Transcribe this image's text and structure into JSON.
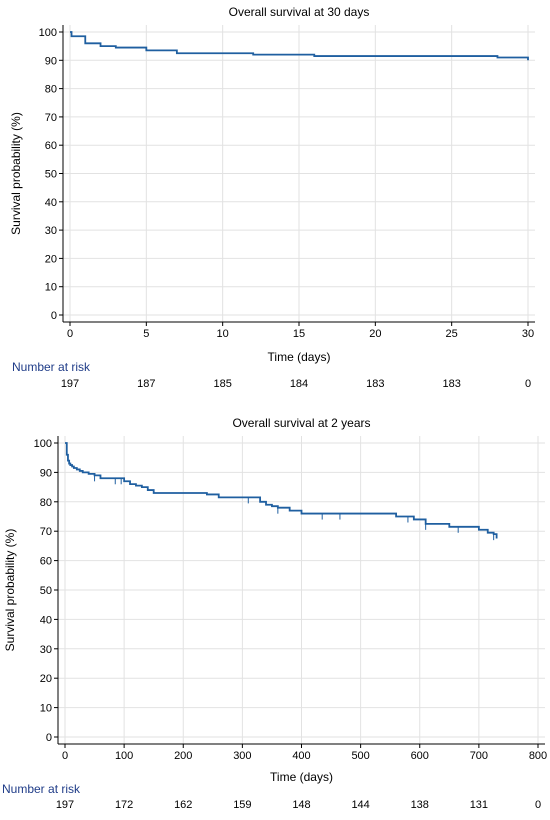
{
  "chart_data": [
    {
      "type": "line",
      "title": "Overall survival at 30 days",
      "xlabel": "Time (days)",
      "ylabel": "Survival probability (%)",
      "xlim": [
        0,
        30
      ],
      "ylim": [
        0,
        100
      ],
      "xticks": [
        0,
        5,
        10,
        15,
        20,
        25,
        30
      ],
      "yticks": [
        0,
        10,
        20,
        30,
        40,
        50,
        60,
        70,
        80,
        90,
        100
      ],
      "grid": true,
      "series_color": "#1f5fa0",
      "series": [
        {
          "step": true,
          "x": [
            0,
            0.1,
            1,
            2,
            3,
            5,
            7,
            12,
            16,
            28,
            30
          ],
          "y": [
            100,
            98.5,
            96,
            95,
            94.5,
            93.5,
            92.5,
            92,
            91.5,
            91,
            90
          ]
        }
      ],
      "risk_table": {
        "header": "Number at risk",
        "header_color": "#1f3c88",
        "at": [
          0,
          5,
          10,
          15,
          20,
          25,
          30
        ],
        "values": [
          "197",
          "187",
          "185",
          "184",
          "183",
          "183",
          "0"
        ]
      }
    },
    {
      "type": "line",
      "title": "Overall survival at 2 years",
      "xlabel": "Time (days)",
      "ylabel": "Survival probability (%)",
      "xlim": [
        0,
        800
      ],
      "ylim": [
        0,
        100
      ],
      "xticks": [
        0,
        100,
        200,
        300,
        400,
        500,
        600,
        700,
        800
      ],
      "yticks": [
        0,
        10,
        20,
        30,
        40,
        50,
        60,
        70,
        80,
        90,
        100
      ],
      "grid": true,
      "series_color": "#1f5fa0",
      "series": [
        {
          "step": true,
          "x": [
            0,
            3,
            5,
            7,
            9,
            12,
            15,
            20,
            25,
            30,
            40,
            50,
            60,
            100,
            110,
            120,
            130,
            140,
            150,
            240,
            260,
            330,
            340,
            350,
            360,
            380,
            400,
            560,
            590,
            610,
            650,
            700,
            715,
            725,
            730
          ],
          "y": [
            100,
            96,
            94,
            93,
            92.5,
            92,
            91.5,
            91,
            90.5,
            90,
            89.5,
            89,
            88,
            87,
            86,
            85.5,
            85,
            84,
            83,
            82.5,
            81.5,
            80,
            79,
            78.5,
            78,
            77,
            76,
            75,
            74,
            72.5,
            71.5,
            70.5,
            69.5,
            69,
            67.5
          ]
        }
      ],
      "censor_marks": [
        50,
        85,
        95,
        310,
        360,
        435,
        465,
        580,
        610,
        665,
        725
      ],
      "risk_table": {
        "header": "Number at risk",
        "header_color": "#1f3c88",
        "at": [
          0,
          100,
          200,
          300,
          400,
          500,
          600,
          700,
          800
        ],
        "values": [
          "197",
          "172",
          "162",
          "159",
          "148",
          "144",
          "138",
          "131",
          "0"
        ]
      }
    }
  ]
}
